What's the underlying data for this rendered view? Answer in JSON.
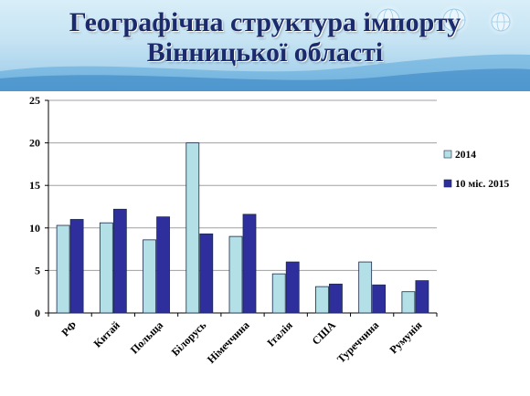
{
  "slide": {
    "title_line1": "Географічна структура імпорту",
    "title_line2": "Вінницької області"
  },
  "colors": {
    "title": "#1a2a6c",
    "series_2014": "#b3dfe6",
    "series_2015": "#2e2f9c",
    "axis": "#000000",
    "grid": "#a0a0a0"
  },
  "chart_data": {
    "type": "bar",
    "categories": [
      "РФ",
      "Китай",
      "Польща",
      "Білорусь",
      "Німеччина",
      "Італія",
      "США",
      "Туреччина",
      "Румунія"
    ],
    "series": [
      {
        "name": "2014",
        "color": "#b3dfe6",
        "values": [
          10.3,
          10.6,
          8.6,
          20.0,
          9.0,
          4.6,
          3.1,
          6.0,
          2.5
        ]
      },
      {
        "name": "10 міс. 2015",
        "color": "#2e2f9c",
        "values": [
          11.0,
          12.2,
          11.3,
          9.3,
          11.6,
          6.0,
          3.4,
          3.3,
          3.8
        ]
      }
    ],
    "yticks": [
      0,
      5,
      10,
      15,
      20,
      25
    ],
    "ylim": [
      0,
      25
    ],
    "grid": true,
    "legend_position": "right"
  }
}
